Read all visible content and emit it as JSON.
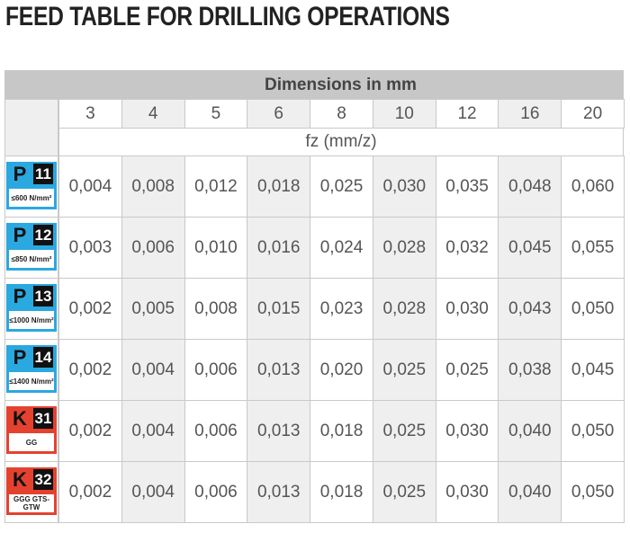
{
  "header": {
    "title": "FEED TABLE FOR DRILLING OPERATIONS"
  },
  "table": {
    "group_header": "Dimensions in mm",
    "columns": [
      "3",
      "4",
      "5",
      "6",
      "8",
      "10",
      "12",
      "16",
      "20"
    ],
    "subheader": "fz (mm/z)",
    "rows": [
      {
        "group": "P",
        "code": "11",
        "material": "≤600 N/mm²",
        "values": [
          "0,004",
          "0,008",
          "0,012",
          "0,018",
          "0,025",
          "0,030",
          "0,035",
          "0,048",
          "0,060"
        ]
      },
      {
        "group": "P",
        "code": "12",
        "material": "≤850 N/mm²",
        "values": [
          "0,003",
          "0,006",
          "0,010",
          "0,016",
          "0,024",
          "0,028",
          "0,032",
          "0,045",
          "0,055"
        ]
      },
      {
        "group": "P",
        "code": "13",
        "material": "≤1000 N/mm²",
        "values": [
          "0,002",
          "0,005",
          "0,008",
          "0,015",
          "0,023",
          "0,028",
          "0,030",
          "0,043",
          "0,050"
        ]
      },
      {
        "group": "P",
        "code": "14",
        "material": "≤1400 N/mm²",
        "values": [
          "0,002",
          "0,004",
          "0,006",
          "0,013",
          "0,020",
          "0,025",
          "0,025",
          "0,038",
          "0,045"
        ]
      },
      {
        "group": "K",
        "code": "31",
        "material": "GG",
        "values": [
          "0,002",
          "0,004",
          "0,006",
          "0,013",
          "0,018",
          "0,025",
          "0,030",
          "0,040",
          "0,050"
        ]
      },
      {
        "group": "K",
        "code": "32",
        "material": "GGG GTS-GTW",
        "values": [
          "0,002",
          "0,004",
          "0,006",
          "0,013",
          "0,018",
          "0,025",
          "0,030",
          "0,040",
          "0,050"
        ]
      }
    ]
  }
}
